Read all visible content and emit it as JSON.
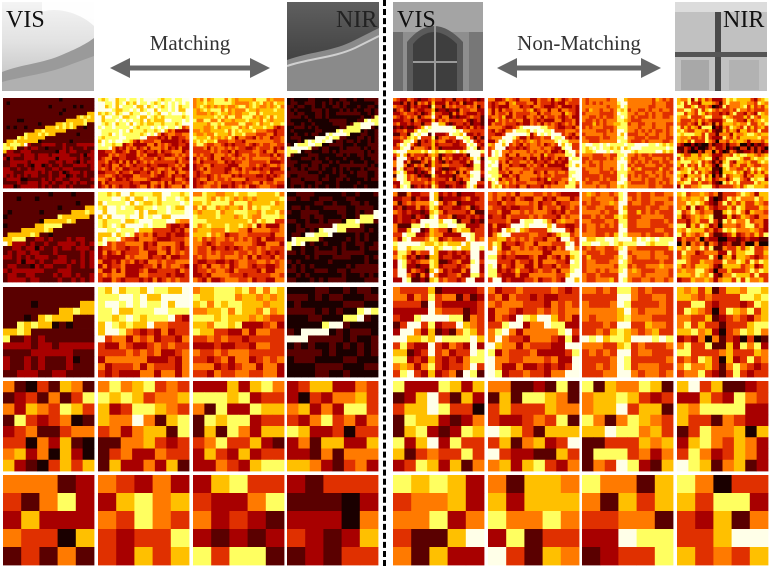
{
  "header": {
    "left": {
      "vis_label": "VIS",
      "nir_label": "NIR",
      "relation": "Matching"
    },
    "right": {
      "vis_label": "VIS",
      "nir_label": "NIR",
      "relation": "Non-Matching"
    }
  },
  "heatmap_rows": [
    {
      "level": 1,
      "grid": 26
    },
    {
      "level": 2,
      "grid": 20
    },
    {
      "level": 3,
      "grid": 13
    },
    {
      "level": 4,
      "grid": 8
    },
    {
      "level": 5,
      "grid": 5
    }
  ],
  "columns": [
    {
      "group": "matching",
      "image": "VIS",
      "theme": "shore-sharp",
      "seed": 11
    },
    {
      "group": "matching",
      "image": "VIS",
      "theme": "shore-bright",
      "seed": 23
    },
    {
      "group": "matching",
      "image": "NIR",
      "theme": "shore-warm",
      "seed": 37
    },
    {
      "group": "matching",
      "image": "NIR",
      "theme": "shore-dark",
      "seed": 41
    },
    {
      "group": "non-matching",
      "image": "VIS",
      "theme": "arch-edges",
      "seed": 53
    },
    {
      "group": "non-matching",
      "image": "VIS",
      "theme": "arch-relief",
      "seed": 67
    },
    {
      "group": "non-matching",
      "image": "NIR",
      "theme": "window-grid",
      "seed": 71
    },
    {
      "group": "non-matching",
      "image": "NIR",
      "theme": "window-dark",
      "seed": 89
    }
  ],
  "colors": {
    "colormap": [
      "#1a0000",
      "#5a0000",
      "#a80000",
      "#e03000",
      "#ff7a00",
      "#ffc000",
      "#ffff60",
      "#ffffe8"
    ],
    "arrow": "#666666",
    "divider": "#000000"
  }
}
